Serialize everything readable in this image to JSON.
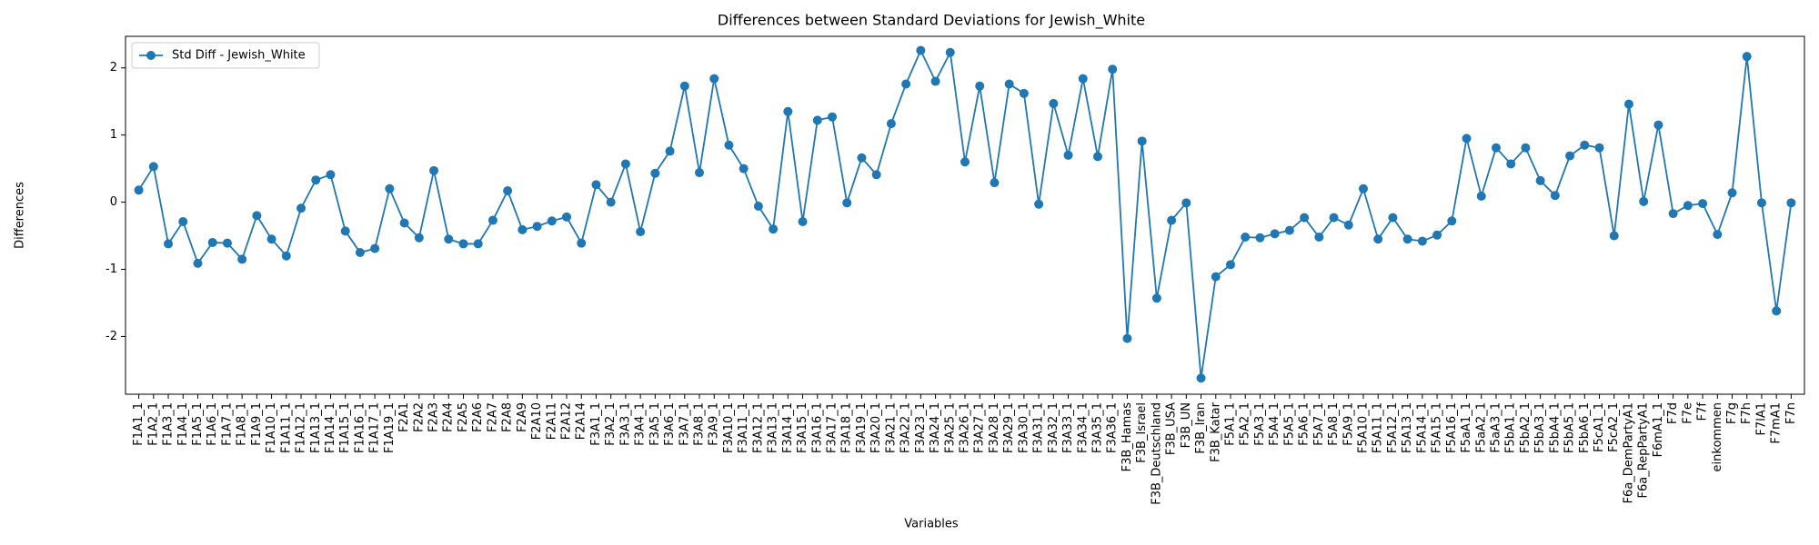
{
  "chart_data": {
    "type": "line",
    "title": "Differences between Standard Deviations for Jewish_White",
    "x_label": "Variables",
    "y_label": "Differences",
    "categories": [
      "F1A1_1",
      "F1A2_1",
      "F1A3_1",
      "F1A4_1",
      "F1A5_1",
      "F1A6_1",
      "F1A7_1",
      "F1A8_1",
      "F1A9_1",
      "F1A10_1",
      "F1A11_1",
      "F1A12_1",
      "F1A13_1",
      "F1A14_1",
      "F1A15_1",
      "F1A16_1",
      "F1A17_1",
      "F1A19_1",
      "F2A1",
      "F2A2",
      "F2A3",
      "F2A4",
      "F2A5",
      "F2A6",
      "F2A7",
      "F2A8",
      "F2A9",
      "F2A10",
      "F2A11",
      "F2A12",
      "F2A14",
      "F3A1_1",
      "F3A2_1",
      "F3A3_1",
      "F3A4_1",
      "F3A5_1",
      "F3A6_1",
      "F3A7_1",
      "F3A8_1",
      "F3A9_1",
      "F3A10_1",
      "F3A11_1",
      "F3A12_1",
      "F3A13_1",
      "F3A14_1",
      "F3A15_1",
      "F3A16_1",
      "F3A17_1",
      "F3A18_1",
      "F3A19_1",
      "F3A20_1",
      "F3A21_1",
      "F3A22_1",
      "F3A23_1",
      "F3A24_1",
      "F3A25_1",
      "F3A26_1",
      "F3A27_1",
      "F3A28_1",
      "F3A29_1",
      "F3A30_1",
      "F3A31_1",
      "F3A32_1",
      "F3A33_1",
      "F3A34_1",
      "F3A35_1",
      "F3A36_1",
      "F3B_Hamas",
      "F3B_Israel",
      "F3B_Deutschland",
      "F3B_USA",
      "F3B_UN",
      "F3B_Iran",
      "F3B_Katar",
      "F5A1_1",
      "F5A2_1",
      "F5A3_1",
      "F5A4_1",
      "F5A5_1",
      "F5A6_1",
      "F5A7_1",
      "F5A8_1",
      "F5A9_1",
      "F5A10_1",
      "F5A11_1",
      "F5A12_1",
      "F5A13_1",
      "F5A14_1",
      "F5A15_1",
      "F5A16_1",
      "F5aA1_1",
      "F5aA2_1",
      "F5aA3_1",
      "F5bA1_1",
      "F5bA2_1",
      "F5bA3_1",
      "F5bA4_1",
      "F5bA5_1",
      "F5bA6_1",
      "F5cA1_1",
      "F5cA2_1",
      "F6a_DemPartyA1",
      "F6a_RepPartyA1",
      "F6mA1_1",
      "F7d",
      "F7e",
      "F7f",
      "einkommen",
      "F7g",
      "F7h",
      "F7lA1",
      "F7mA1",
      "F7n"
    ],
    "series": [
      {
        "name": "Std Diff - Jewish_White",
        "color": "#1f77b4",
        "values": [
          0.18,
          0.53,
          -0.62,
          -0.29,
          -0.91,
          -0.6,
          -0.61,
          -0.85,
          -0.2,
          -0.55,
          -0.8,
          -0.09,
          0.33,
          0.41,
          -0.43,
          -0.75,
          -0.69,
          0.2,
          -0.31,
          -0.53,
          0.47,
          -0.55,
          -0.62,
          -0.62,
          -0.27,
          0.17,
          -0.41,
          -0.36,
          -0.28,
          -0.22,
          -0.61,
          0.26,
          0.0,
          0.57,
          -0.44,
          0.43,
          0.76,
          1.73,
          0.44,
          1.84,
          0.85,
          0.5,
          -0.06,
          -0.4,
          1.35,
          -0.29,
          1.22,
          1.27,
          -0.01,
          0.66,
          0.41,
          1.17,
          1.76,
          2.26,
          1.8,
          2.23,
          0.6,
          1.73,
          0.29,
          1.76,
          1.62,
          -0.03,
          1.47,
          0.7,
          1.84,
          0.68,
          1.98,
          -2.03,
          0.91,
          -1.43,
          -0.27,
          -0.01,
          -2.62,
          -1.11,
          -0.93,
          -0.52,
          -0.53,
          -0.47,
          -0.42,
          -0.23,
          -0.52,
          -0.23,
          -0.34,
          0.2,
          -0.55,
          -0.23,
          -0.55,
          -0.58,
          -0.49,
          -0.28,
          0.95,
          0.09,
          0.81,
          0.57,
          0.81,
          0.32,
          0.1,
          0.69,
          0.85,
          0.81,
          -0.5,
          1.46,
          0.01,
          1.15,
          -0.17,
          -0.05,
          -0.02,
          -0.48,
          0.14,
          2.17,
          -0.01,
          -1.62,
          -0.01
        ]
      }
    ],
    "ylim": [
      -2.86,
      2.47
    ],
    "yticks": [
      -2,
      -1,
      0,
      1,
      2
    ],
    "grid": false,
    "legend": "upper left"
  }
}
